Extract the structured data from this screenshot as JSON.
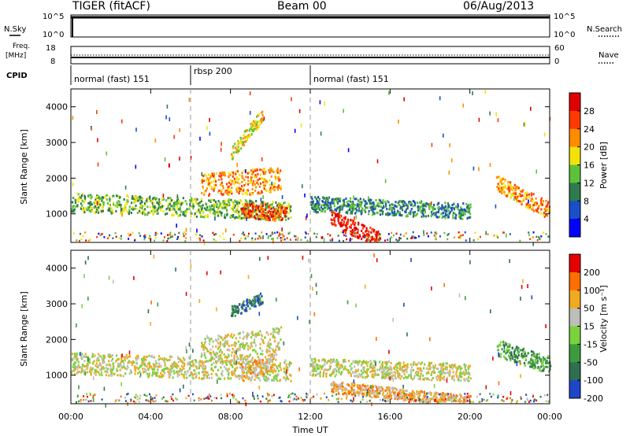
{
  "header": {
    "left": "TIGER (fitACF)",
    "center": "Beam 00",
    "right": "06/Aug/2013"
  },
  "strips": {
    "nsky_label": "N.Sky",
    "nsky_ticks": [
      "10^5",
      "10^0"
    ],
    "nsearch_label": "N.Search",
    "freq_label_1": "Freq.",
    "freq_label_2": "[MHz]",
    "freq_ticks": [
      "18",
      "8"
    ],
    "nave_label": "Nave",
    "nave_ticks": [
      "60",
      "0"
    ],
    "cpid_label": "CPID",
    "cpid_segments": [
      {
        "label": "normal (fast) 151",
        "start_hour": 0
      },
      {
        "label": "rbsp 200",
        "start_hour": 6
      },
      {
        "label": "normal (fast) 151",
        "start_hour": 12
      }
    ]
  },
  "chart_data": [
    {
      "type": "heatmap",
      "name": "power-panel",
      "ylabel": "Slant Range [km]",
      "xlabel": "Time UT",
      "yticks": [
        "1000",
        "2000",
        "3000",
        "4000"
      ],
      "ylim": [
        200,
        4500
      ],
      "xlim": [
        0,
        24
      ],
      "xticks": [
        "00:00",
        "04:00",
        "08:00",
        "12:00",
        "16:00",
        "20:00",
        "00:00"
      ],
      "colorbar": {
        "label": "Power [dB]",
        "ticks": [
          "4",
          "8",
          "12",
          "16",
          "20",
          "24",
          "28"
        ],
        "colors": [
          "#0000ff",
          "#1a4fc7",
          "#2f7a4e",
          "#5cc23a",
          "#f2e20a",
          "#ff8c00",
          "#ff3a00",
          "#e00000"
        ]
      },
      "features": [
        {
          "t0": 0.0,
          "t1": 11.0,
          "r_start": 1350,
          "r_end": 1100,
          "width": 260,
          "level": 3
        },
        {
          "t0": 6.5,
          "t1": 10.5,
          "r_start": 1800,
          "r_end": 2000,
          "width": 350,
          "level": 5
        },
        {
          "t0": 8.5,
          "t1": 10.8,
          "r_start": 1100,
          "r_end": 1050,
          "width": 220,
          "level": 6
        },
        {
          "t0": 8.0,
          "t1": 9.6,
          "r_start": 2700,
          "r_end": 3800,
          "width": 180,
          "level": 4
        },
        {
          "t0": 12.0,
          "t1": 20.0,
          "r_start": 1300,
          "r_end": 1100,
          "width": 220,
          "level": 2
        },
        {
          "t0": 13.0,
          "t1": 15.5,
          "r_start": 900,
          "r_end": 300,
          "width": 220,
          "level": 7
        },
        {
          "t0": 21.3,
          "t1": 24.0,
          "r_start": 1900,
          "r_end": 1100,
          "width": 240,
          "level": 5
        }
      ]
    },
    {
      "type": "heatmap",
      "name": "velocity-panel",
      "ylabel": "Slant Range [km]",
      "xlabel": "Time UT",
      "yticks": [
        "1000",
        "2000",
        "3000",
        "4000"
      ],
      "ylim": [
        200,
        4500
      ],
      "xlim": [
        0,
        24
      ],
      "xticks": [
        "00:00",
        "04:00",
        "08:00",
        "12:00",
        "16:00",
        "20:00",
        "00:00"
      ],
      "colorbar": {
        "label": "Velocity [m s⁻¹]",
        "ticks": [
          "200",
          "100",
          "50",
          "15",
          "-15",
          "-50",
          "-100",
          "-200"
        ],
        "colors": [
          "#1e46c8",
          "#2f6e50",
          "#3c9b3c",
          "#7ad23c",
          "#bebeb9",
          "#f0aa1e",
          "#ff6e00",
          "#e60000"
        ]
      },
      "features": [
        {
          "t0": 0.0,
          "t1": 11.0,
          "r_start": 1350,
          "r_end": 1150,
          "width": 300,
          "level": 4
        },
        {
          "t0": 6.5,
          "t1": 10.5,
          "r_start": 1700,
          "r_end": 2000,
          "width": 380,
          "level": 4
        },
        {
          "t0": 8.5,
          "t1": 10.2,
          "r_start": 1100,
          "r_end": 1400,
          "width": 260,
          "level": 5
        },
        {
          "t0": 8.0,
          "t1": 9.6,
          "r_start": 2800,
          "r_end": 3200,
          "width": 160,
          "level": 1
        },
        {
          "t0": 12.0,
          "t1": 20.0,
          "r_start": 1250,
          "r_end": 1100,
          "width": 240,
          "level": 4
        },
        {
          "t0": 13.0,
          "t1": 20.0,
          "r_start": 700,
          "r_end": 300,
          "width": 160,
          "level": 5
        },
        {
          "t0": 21.3,
          "t1": 24.0,
          "r_start": 1800,
          "r_end": 1300,
          "width": 240,
          "level": 2
        }
      ]
    }
  ]
}
